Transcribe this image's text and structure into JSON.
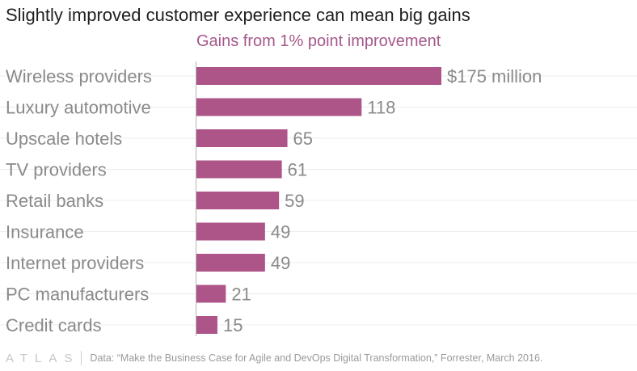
{
  "title": "Slightly improved customer experience can mean big gains",
  "subtitle": "Gains from 1% point improvement",
  "colors": {
    "bar": "#ad5488",
    "subtitle": "#a4588a",
    "category": "#8a8a8a",
    "value": "#8a8a8a",
    "grid": "#ececec",
    "axis": "#b5b5b5"
  },
  "chart_data": {
    "type": "bar",
    "orientation": "horizontal",
    "categories": [
      "Wireless providers",
      "Luxury automotive",
      "Upscale hotels",
      "TV providers",
      "Retail banks",
      "Insurance",
      "Internet providers",
      "PC manufacturers",
      "Credit cards"
    ],
    "values": [
      175,
      118,
      65,
      61,
      59,
      49,
      49,
      21,
      15
    ],
    "value_labels": [
      "$175 million",
      "118",
      "65",
      "61",
      "59",
      "49",
      "49",
      "21",
      "15"
    ],
    "unit": "$ million",
    "title": "Gains from 1% point improvement",
    "xlim": [
      0,
      175
    ],
    "grid": true,
    "legend": "none"
  },
  "footer": {
    "logo": "ATLAS",
    "source": "Data: “Make the Business Case for Agile and DevOps Digital Transformation,” Forrester, March 2016."
  }
}
